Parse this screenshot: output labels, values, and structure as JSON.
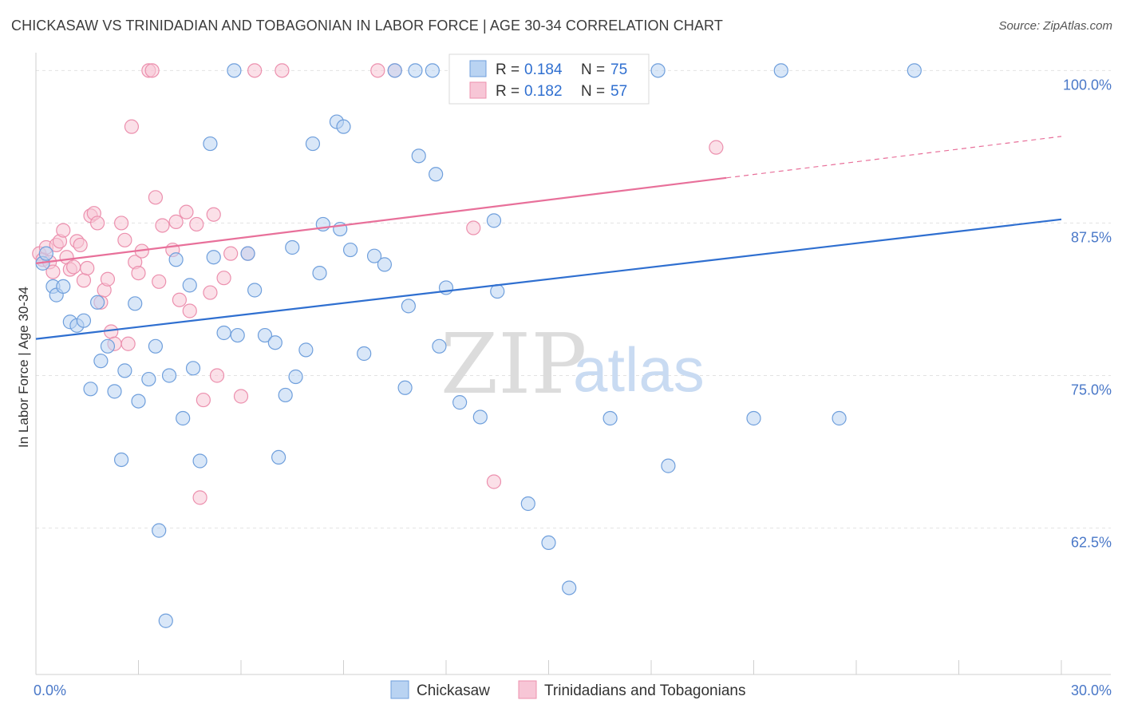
{
  "header": {
    "title": "CHICKASAW VS TRINIDADIAN AND TOBAGONIAN IN LABOR FORCE | AGE 30-34 CORRELATION CHART",
    "source": "Source: ZipAtlas.com"
  },
  "watermark": {
    "zip": "ZIP",
    "atlas": "atlas"
  },
  "colors": {
    "chickasaw_fill": "#b9d3f2",
    "chickasaw_stroke": "#6f9fdc",
    "chickasaw_line": "#2f6fd0",
    "trini_fill": "#f7c6d6",
    "trini_stroke": "#ec90ae",
    "trini_line": "#e8709a",
    "axis_text": "#4a78c8",
    "grid": "#e2e2e2"
  },
  "legend": {
    "rows": [
      {
        "r_label": "R = ",
        "r_value": "0.184",
        "n_label": "N = ",
        "n_value": "75"
      },
      {
        "r_label": "R = ",
        "r_value": "0.182",
        "n_label": "N = ",
        "n_value": "57"
      }
    ]
  },
  "chart_data": {
    "type": "scatter",
    "title": "CHICKASAW VS TRINIDADIAN AND TOBAGONIAN IN LABOR FORCE | AGE 30-34 CORRELATION CHART",
    "xlabel": "",
    "ylabel": "In Labor Force | Age 30-34",
    "xlim": [
      0,
      30
    ],
    "ylim": [
      50.5,
      101.2
    ],
    "x_tick_labels": [
      {
        "value": 0,
        "label": "0.0%"
      },
      {
        "value": 30,
        "label": "30.0%"
      }
    ],
    "y_tick_labels": [
      {
        "value": 100,
        "label": "100.0%"
      },
      {
        "value": 87.5,
        "label": "87.5%"
      },
      {
        "value": 75,
        "label": "75.0%"
      },
      {
        "value": 62.5,
        "label": "62.5%"
      }
    ],
    "y_gridlines": [
      100,
      87.5,
      75,
      62.5
    ],
    "x_minor_ticks": [
      3,
      6,
      9,
      12,
      15,
      18,
      21,
      24,
      27,
      30
    ],
    "grid": true,
    "legend_position": "top-center",
    "series": [
      {
        "name": "Chickasaw",
        "r": 0.184,
        "n": 75,
        "trend": {
          "x": [
            0,
            30
          ],
          "y": [
            78.0,
            87.8
          ],
          "dashed_from": null
        },
        "points": [
          [
            0.2,
            84.2
          ],
          [
            0.5,
            82.3
          ],
          [
            0.6,
            81.6
          ],
          [
            0.8,
            82.3
          ],
          [
            1.0,
            79.4
          ],
          [
            1.2,
            79.1
          ],
          [
            1.4,
            79.5
          ],
          [
            1.6,
            73.9
          ],
          [
            1.8,
            81.0
          ],
          [
            1.9,
            76.2
          ],
          [
            2.1,
            77.4
          ],
          [
            2.3,
            73.7
          ],
          [
            2.5,
            68.1
          ],
          [
            2.6,
            75.4
          ],
          [
            2.9,
            80.9
          ],
          [
            3.0,
            72.9
          ],
          [
            3.3,
            74.7
          ],
          [
            3.5,
            77.4
          ],
          [
            3.6,
            62.3
          ],
          [
            3.8,
            54.9
          ],
          [
            3.9,
            75.0
          ],
          [
            4.1,
            84.5
          ],
          [
            4.3,
            71.5
          ],
          [
            4.5,
            82.4
          ],
          [
            4.6,
            75.6
          ],
          [
            4.8,
            68.0
          ],
          [
            5.1,
            94.0
          ],
          [
            5.2,
            84.7
          ],
          [
            5.5,
            78.5
          ],
          [
            5.8,
            100.0
          ],
          [
            5.9,
            78.3
          ],
          [
            6.2,
            85.0
          ],
          [
            6.4,
            82.0
          ],
          [
            6.7,
            78.3
          ],
          [
            7.0,
            77.7
          ],
          [
            7.1,
            68.3
          ],
          [
            7.3,
            73.4
          ],
          [
            7.5,
            85.5
          ],
          [
            7.6,
            74.9
          ],
          [
            7.9,
            77.1
          ],
          [
            8.1,
            94.0
          ],
          [
            8.3,
            83.4
          ],
          [
            8.4,
            87.4
          ],
          [
            8.8,
            95.8
          ],
          [
            8.9,
            87.0
          ],
          [
            9.0,
            95.4
          ],
          [
            9.2,
            85.3
          ],
          [
            9.6,
            76.8
          ],
          [
            9.9,
            84.8
          ],
          [
            10.2,
            84.1
          ],
          [
            10.5,
            100.0
          ],
          [
            10.8,
            74.0
          ],
          [
            10.9,
            80.7
          ],
          [
            11.2,
            93.0
          ],
          [
            11.6,
            100.0
          ],
          [
            11.7,
            91.5
          ],
          [
            11.8,
            77.4
          ],
          [
            12.0,
            82.2
          ],
          [
            12.4,
            72.8
          ],
          [
            13.0,
            71.6
          ],
          [
            13.4,
            87.7
          ],
          [
            13.5,
            81.9
          ],
          [
            14.4,
            64.5
          ],
          [
            15.0,
            61.3
          ],
          [
            15.6,
            57.6
          ],
          [
            16.5,
            100.0
          ],
          [
            16.8,
            71.5
          ],
          [
            18.2,
            100.0
          ],
          [
            18.5,
            67.6
          ],
          [
            21.0,
            71.5
          ],
          [
            21.8,
            100.0
          ],
          [
            23.5,
            71.5
          ],
          [
            25.7,
            100.0
          ],
          [
            0.3,
            85.0
          ],
          [
            11.1,
            100.0
          ]
        ]
      },
      {
        "name": "Trinidadians and Tobagonians",
        "r": 0.182,
        "n": 57,
        "trend": {
          "x": [
            0,
            30
          ],
          "y": [
            84.2,
            94.6
          ],
          "dashed_from": 20.2
        },
        "points": [
          [
            0.1,
            85.0
          ],
          [
            0.2,
            84.5
          ],
          [
            0.3,
            85.5
          ],
          [
            0.4,
            84.3
          ],
          [
            0.5,
            83.5
          ],
          [
            0.6,
            85.7
          ],
          [
            0.7,
            86.0
          ],
          [
            0.8,
            86.9
          ],
          [
            0.9,
            84.7
          ],
          [
            1.0,
            83.7
          ],
          [
            1.1,
            83.9
          ],
          [
            1.2,
            86.0
          ],
          [
            1.3,
            85.7
          ],
          [
            1.4,
            82.8
          ],
          [
            1.5,
            83.8
          ],
          [
            1.6,
            88.1
          ],
          [
            1.7,
            88.3
          ],
          [
            1.8,
            87.5
          ],
          [
            1.9,
            81.0
          ],
          [
            2.0,
            82.0
          ],
          [
            2.1,
            82.9
          ],
          [
            2.2,
            78.6
          ],
          [
            2.3,
            77.6
          ],
          [
            2.5,
            87.5
          ],
          [
            2.6,
            86.1
          ],
          [
            2.7,
            77.6
          ],
          [
            2.8,
            95.4
          ],
          [
            2.9,
            84.3
          ],
          [
            3.0,
            83.4
          ],
          [
            3.1,
            85.2
          ],
          [
            3.3,
            100.0
          ],
          [
            3.4,
            100.0
          ],
          [
            3.5,
            89.6
          ],
          [
            3.6,
            82.7
          ],
          [
            3.7,
            87.3
          ],
          [
            4.0,
            85.3
          ],
          [
            4.1,
            87.6
          ],
          [
            4.2,
            81.2
          ],
          [
            4.4,
            88.4
          ],
          [
            4.5,
            80.3
          ],
          [
            4.7,
            87.4
          ],
          [
            4.8,
            65.0
          ],
          [
            4.9,
            73.0
          ],
          [
            5.1,
            81.8
          ],
          [
            5.2,
            88.2
          ],
          [
            5.3,
            75.0
          ],
          [
            5.5,
            83.0
          ],
          [
            5.7,
            85.0
          ],
          [
            6.0,
            73.3
          ],
          [
            6.2,
            85.0
          ],
          [
            6.4,
            100.0
          ],
          [
            7.2,
            100.0
          ],
          [
            10.0,
            100.0
          ],
          [
            10.5,
            100.0
          ],
          [
            12.8,
            87.1
          ],
          [
            13.4,
            66.3
          ],
          [
            19.9,
            93.7
          ]
        ]
      }
    ]
  },
  "bottom_legend": {
    "items": [
      {
        "label": "Chickasaw"
      },
      {
        "label": "Trinidadians and Tobagonians"
      }
    ]
  }
}
